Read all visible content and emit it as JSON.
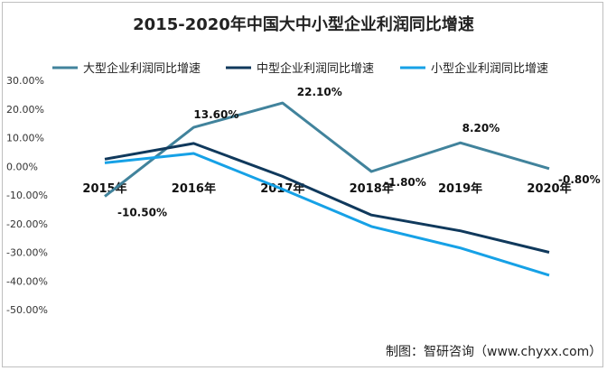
{
  "chart_data": {
    "type": "line",
    "title": "2015-2020年中国大中小型企业利润同比增速",
    "categories": [
      "2015年",
      "2016年",
      "2017年",
      "2018年",
      "2019年",
      "2020年"
    ],
    "series": [
      {
        "name": "大型企业利润同比增速",
        "values": [
          -10.5,
          13.6,
          22.1,
          -1.8,
          8.2,
          -0.8
        ],
        "labels": [
          "-10.50%",
          "13.60%",
          "22.10%",
          "-1.80%",
          "8.20%",
          "-0.80%"
        ],
        "color": "#41839c"
      },
      {
        "name": "中型企业利润同比增速",
        "values": [
          2.5,
          8.0,
          -3.5,
          -17.0,
          -22.5,
          -30.0
        ],
        "color": "#10395c"
      },
      {
        "name": "小型企业利润同比增速",
        "values": [
          1.2,
          4.5,
          -8.0,
          -21.0,
          -28.5,
          -38.0
        ],
        "color": "#16a1e6"
      }
    ],
    "yticks": [
      "30.00%",
      "20.00%",
      "10.00%",
      "0.00%",
      "-10.00%",
      "-20.00%",
      "-30.00%",
      "-40.00%",
      "-50.00%"
    ],
    "ylim": [
      -50,
      30
    ],
    "grid": false,
    "legend_position": "top"
  },
  "source": "制图：智研咨询（www.chyxx.com）"
}
